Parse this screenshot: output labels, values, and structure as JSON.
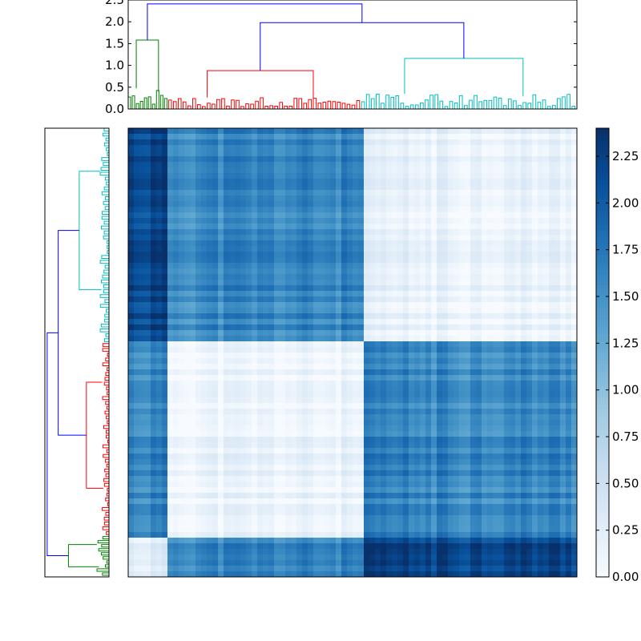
{
  "chart_data": [
    {
      "type": "dendrogram",
      "orientation": "top",
      "ylim": [
        0,
        2.5
      ],
      "y_ticks": [
        "0.0",
        "0.5",
        "1.0",
        "1.5",
        "2.0",
        "2.5"
      ],
      "merges": [
        {
          "cluster": "root",
          "height": 2.41,
          "color": "#0000ff"
        },
        {
          "cluster": "upper",
          "height": 1.98,
          "color": "#0000ff"
        },
        {
          "cluster": "green",
          "height": 1.58,
          "color": "#008000"
        },
        {
          "cluster": "cyan",
          "height": 1.16,
          "color": "#00bfbf"
        },
        {
          "cluster": "red",
          "height": 0.88,
          "color": "#ff0000"
        }
      ],
      "colors": {
        "link": "#0000ff",
        "green": "#008000",
        "red": "#ff0000",
        "cyan": "#00bfbf"
      }
    },
    {
      "type": "dendrogram",
      "orientation": "left",
      "merges": [
        {
          "cluster": "root",
          "height": 2.41,
          "color": "#0000ff"
        },
        {
          "cluster": "upper",
          "height": 1.98,
          "color": "#0000ff"
        },
        {
          "cluster": "cyan",
          "height": 1.16,
          "color": "#00bfbf"
        },
        {
          "cluster": "red",
          "height": 0.88,
          "color": "#ff0000"
        },
        {
          "cluster": "green",
          "height": 1.58,
          "color": "#008000"
        }
      ]
    },
    {
      "type": "heatmap",
      "colormap": "Blues",
      "vmin": 0,
      "vmax": 2.4,
      "colorbar_ticks": [
        "0.00",
        "0.25",
        "0.50",
        "0.75",
        "1.00",
        "1.25",
        "1.50",
        "1.75",
        "2.00",
        "2.25"
      ],
      "block_order": [
        "green",
        "red",
        "cyan"
      ],
      "block_distances": {
        "green-green": 0.3,
        "red-red": 0.15,
        "cyan-cyan": 0.2,
        "green-red": 1.6,
        "green-cyan": 2.2,
        "red-cyan": 1.6
      },
      "colormap_stops": [
        "#f7fbff",
        "#deebf7",
        "#c6dbef",
        "#9ecae1",
        "#6baed6",
        "#4292c6",
        "#2171b5",
        "#08519c",
        "#08306b"
      ]
    }
  ]
}
